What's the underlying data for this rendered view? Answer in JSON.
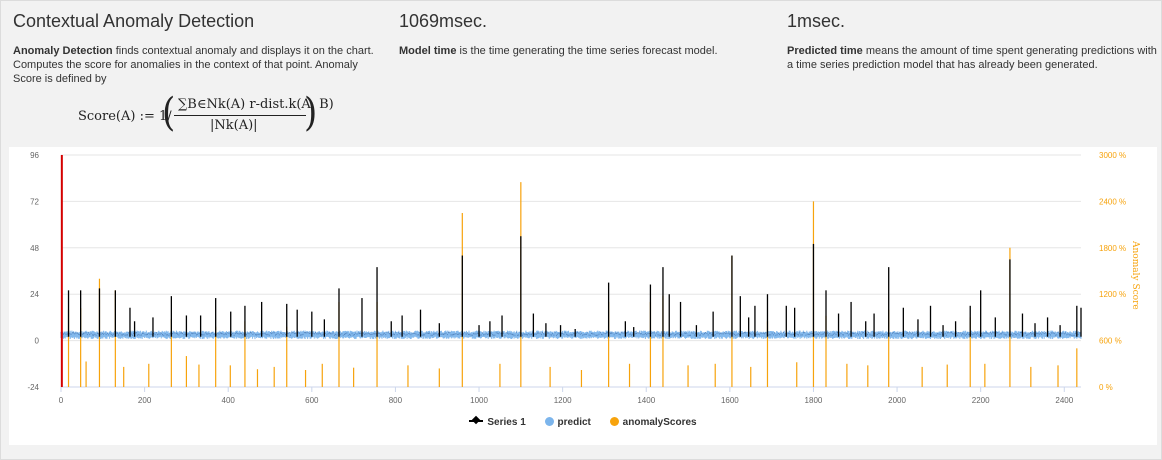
{
  "header": {
    "col1": {
      "title": "Contextual Anomaly Detection",
      "desc_bold": "Anomaly Detection",
      "desc_rest": " finds contextual anomaly and displays it on the chart. Computes the score for anomalies in the context of that point. Anomaly Score is defined by",
      "formula_lhs": "Score(A) := 1/",
      "formula_num": "∑B∈Nk(A) r-dist.k(A, B)",
      "formula_den": "|Nk(A)|"
    },
    "col2": {
      "title": "1069msec.",
      "desc_bold": "Model time",
      "desc_rest": " is the time generating the time series forecast model."
    },
    "col3": {
      "title": "1msec.",
      "desc_bold": "Predicted time",
      "desc_rest": " means the amount of time spent generating predictions with a time series prediction model that has already been generated."
    }
  },
  "legend": {
    "series1": "Series 1",
    "predict": "predict",
    "anomaly": "anomalyScores"
  },
  "colors": {
    "series1": "#000000",
    "predict": "#7cb5ec",
    "predict_dark": "#4f7fb8",
    "anomaly": "#f7a30c",
    "marker": "#d40000"
  },
  "chart_data": {
    "type": "line",
    "x_range": [
      0,
      2440
    ],
    "x_ticks": [
      0,
      200,
      400,
      600,
      800,
      1000,
      1200,
      1400,
      1600,
      1800,
      2000,
      2200,
      2400
    ],
    "y_left": {
      "ticks": [
        96,
        72,
        48,
        24,
        0,
        -24
      ],
      "range": [
        -24,
        96
      ]
    },
    "y_right": {
      "ticks": [
        "3000 %",
        "2400 %",
        "1800 %",
        "1200 %",
        "600 %",
        "0 %"
      ],
      "range": [
        0,
        3000
      ],
      "label": "Anomaly Score"
    },
    "marker_x": 2,
    "predict_band": [
      2,
      4
    ],
    "series1_peaks": [
      [
        18,
        26
      ],
      [
        47,
        26
      ],
      [
        92,
        27
      ],
      [
        130,
        26
      ],
      [
        165,
        17
      ],
      [
        176,
        10
      ],
      [
        220,
        12
      ],
      [
        264,
        23
      ],
      [
        300,
        13
      ],
      [
        334,
        13
      ],
      [
        370,
        22
      ],
      [
        406,
        15
      ],
      [
        440,
        18
      ],
      [
        480,
        20
      ],
      [
        540,
        19
      ],
      [
        565,
        16
      ],
      [
        600,
        15
      ],
      [
        630,
        11
      ],
      [
        665,
        27
      ],
      [
        720,
        22
      ],
      [
        756,
        38
      ],
      [
        790,
        10
      ],
      [
        816,
        13
      ],
      [
        860,
        16
      ],
      [
        905,
        9
      ],
      [
        960,
        44
      ],
      [
        1000,
        8
      ],
      [
        1026,
        10
      ],
      [
        1055,
        13
      ],
      [
        1100,
        54
      ],
      [
        1130,
        14
      ],
      [
        1160,
        9
      ],
      [
        1195,
        8
      ],
      [
        1230,
        6
      ],
      [
        1310,
        30
      ],
      [
        1350,
        10
      ],
      [
        1370,
        7
      ],
      [
        1410,
        29
      ],
      [
        1440,
        38
      ],
      [
        1455,
        24
      ],
      [
        1482,
        20
      ],
      [
        1520,
        8
      ],
      [
        1560,
        15
      ],
      [
        1605,
        44
      ],
      [
        1625,
        23
      ],
      [
        1645,
        12
      ],
      [
        1660,
        18
      ],
      [
        1690,
        24
      ],
      [
        1735,
        18
      ],
      [
        1755,
        17
      ],
      [
        1800,
        50
      ],
      [
        1830,
        26
      ],
      [
        1860,
        14
      ],
      [
        1890,
        20
      ],
      [
        1925,
        10
      ],
      [
        1945,
        14
      ],
      [
        1980,
        38
      ],
      [
        2015,
        17
      ],
      [
        2050,
        11
      ],
      [
        2080,
        18
      ],
      [
        2110,
        8
      ],
      [
        2140,
        10
      ],
      [
        2175,
        18
      ],
      [
        2200,
        26
      ],
      [
        2235,
        12
      ],
      [
        2270,
        42
      ],
      [
        2300,
        14
      ],
      [
        2330,
        9
      ],
      [
        2360,
        12
      ],
      [
        2390,
        8
      ],
      [
        2430,
        18
      ],
      [
        2440,
        17
      ]
    ],
    "anomaly_peaks": [
      [
        18,
        1000
      ],
      [
        47,
        1020
      ],
      [
        92,
        1400
      ],
      [
        130,
        1250
      ],
      [
        264,
        880
      ],
      [
        300,
        400
      ],
      [
        370,
        780
      ],
      [
        440,
        850
      ],
      [
        540,
        780
      ],
      [
        665,
        1100
      ],
      [
        756,
        1100
      ],
      [
        960,
        2250
      ],
      [
        1100,
        2650
      ],
      [
        1310,
        1100
      ],
      [
        1410,
        1100
      ],
      [
        1440,
        1180
      ],
      [
        1605,
        1700
      ],
      [
        1690,
        850
      ],
      [
        1800,
        2400
      ],
      [
        1830,
        920
      ],
      [
        1980,
        1000
      ],
      [
        2175,
        900
      ],
      [
        2270,
        1800
      ],
      [
        2430,
        500
      ],
      [
        60,
        330
      ],
      [
        150,
        260
      ],
      [
        210,
        300
      ],
      [
        330,
        290
      ],
      [
        405,
        280
      ],
      [
        470,
        230
      ],
      [
        510,
        260
      ],
      [
        585,
        220
      ],
      [
        625,
        300
      ],
      [
        700,
        250
      ],
      [
        830,
        280
      ],
      [
        905,
        240
      ],
      [
        1050,
        300
      ],
      [
        1170,
        260
      ],
      [
        1245,
        220
      ],
      [
        1360,
        300
      ],
      [
        1500,
        280
      ],
      [
        1565,
        300
      ],
      [
        1650,
        260
      ],
      [
        1760,
        320
      ],
      [
        1880,
        300
      ],
      [
        1930,
        280
      ],
      [
        2060,
        260
      ],
      [
        2120,
        290
      ],
      [
        2210,
        300
      ],
      [
        2320,
        260
      ],
      [
        2385,
        280
      ]
    ]
  }
}
